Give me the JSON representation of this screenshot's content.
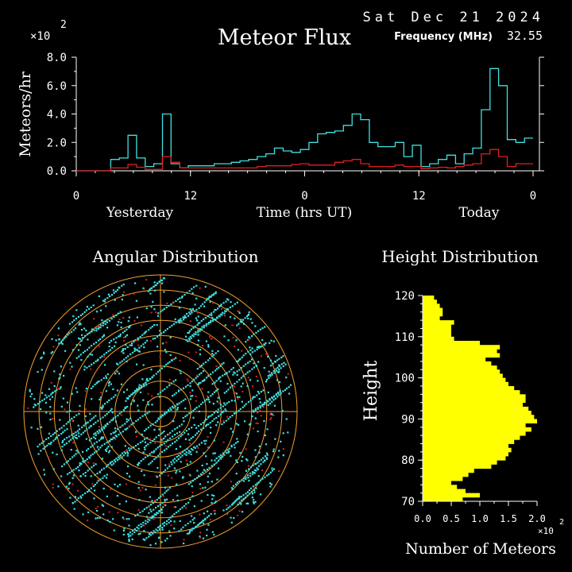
{
  "header": {
    "date": "Sat Dec 21 2024",
    "title": "Meteor Flux",
    "frequency_label": "Frequency (MHz)",
    "frequency_value": "32.55"
  },
  "chart_data": [
    {
      "type": "bar",
      "title": "Meteor Flux",
      "ylabel": "Meteors/hr",
      "xlabel": "Time (hrs UT)",
      "y_multiplier_label": "×10",
      "y_multiplier_exp": "2",
      "ylim": [
        0,
        8
      ],
      "yticks": [
        "0.0",
        "2.0",
        "4.0",
        "6.0",
        "8.0"
      ],
      "xticks": [
        "0",
        "12",
        "0",
        "12",
        "0"
      ],
      "day_labels": [
        "Yesterday",
        "Today"
      ],
      "hours_total": 48,
      "series": [
        {
          "color": "#40e0e0",
          "values": [
            0,
            0,
            0,
            0,
            0.8,
            0.9,
            2.5,
            0.9,
            0.3,
            0.5,
            4.0,
            0.5,
            0.2,
            0.35,
            0.35,
            0.35,
            0.5,
            0.5,
            0.6,
            0.7,
            0.8,
            1.0,
            1.2,
            1.6,
            1.4,
            1.3,
            1.5,
            2.0,
            2.6,
            2.7,
            2.8,
            3.2,
            4.0,
            3.6,
            2.0,
            1.7,
            1.7,
            2.0,
            1.0,
            1.8,
            0.3,
            0.5,
            0.8,
            1.1,
            0.5,
            1.2,
            1.6,
            4.3,
            7.2,
            6.0,
            2.2,
            2.0,
            2.3
          ]
        },
        {
          "color": "#e02020",
          "values": [
            0,
            0,
            0,
            0,
            0.2,
            0.2,
            0.45,
            0.25,
            0.1,
            0.1,
            1.0,
            0.6,
            0.2,
            0.2,
            0.2,
            0.2,
            0.2,
            0.2,
            0.2,
            0.2,
            0.2,
            0.3,
            0.35,
            0.35,
            0.35,
            0.45,
            0.5,
            0.4,
            0.4,
            0.4,
            0.6,
            0.7,
            0.8,
            0.5,
            0.3,
            0.3,
            0.3,
            0.4,
            0.3,
            0.3,
            0.15,
            0.2,
            0.25,
            0.2,
            0.3,
            0.4,
            0.5,
            1.2,
            1.5,
            1.0,
            0.3,
            0.5,
            0.5
          ]
        }
      ]
    },
    {
      "type": "scatter",
      "title": "Angular Distribution",
      "ring_count": 9,
      "colors": {
        "points": "#40e0e0",
        "red_points": "#e02020",
        "rings": "#f0a030"
      }
    },
    {
      "type": "bar",
      "orientation": "horizontal",
      "title": "Height Distribution",
      "ylabel": "Height",
      "xlabel": "Number of Meteors",
      "x_multiplier_label": "×10",
      "x_multiplier_exp": "2",
      "ylim": [
        70,
        120
      ],
      "yticks": [
        "70",
        "80",
        "90",
        "100",
        "110",
        "120"
      ],
      "xlim": [
        0,
        2.0
      ],
      "xticks": [
        "0.0",
        "0.5",
        "1.0",
        "1.5",
        "2.0"
      ],
      "color": "#ffff00",
      "heights": [
        70,
        71,
        72,
        73,
        74,
        75,
        76,
        77,
        78,
        79,
        80,
        81,
        82,
        83,
        84,
        85,
        86,
        87,
        88,
        89,
        90,
        91,
        92,
        93,
        94,
        95,
        96,
        97,
        98,
        99,
        100,
        101,
        102,
        103,
        104,
        105,
        106,
        107,
        108,
        109,
        110,
        111,
        112,
        113,
        114,
        115,
        116,
        117,
        118,
        119
      ],
      "values": [
        0.7,
        1.0,
        0.75,
        0.6,
        0.5,
        0.7,
        0.8,
        0.9,
        1.2,
        1.3,
        1.45,
        1.5,
        1.55,
        1.5,
        1.6,
        1.7,
        1.8,
        1.9,
        1.8,
        2.0,
        1.95,
        1.9,
        1.85,
        1.75,
        1.8,
        1.8,
        1.7,
        1.6,
        1.5,
        1.45,
        1.4,
        1.35,
        1.3,
        1.2,
        1.1,
        1.35,
        1.3,
        1.35,
        1.0,
        0.55,
        0.5,
        0.5,
        0.5,
        0.55,
        0.3,
        0.35,
        0.35,
        0.3,
        0.25,
        0.2
      ]
    }
  ]
}
